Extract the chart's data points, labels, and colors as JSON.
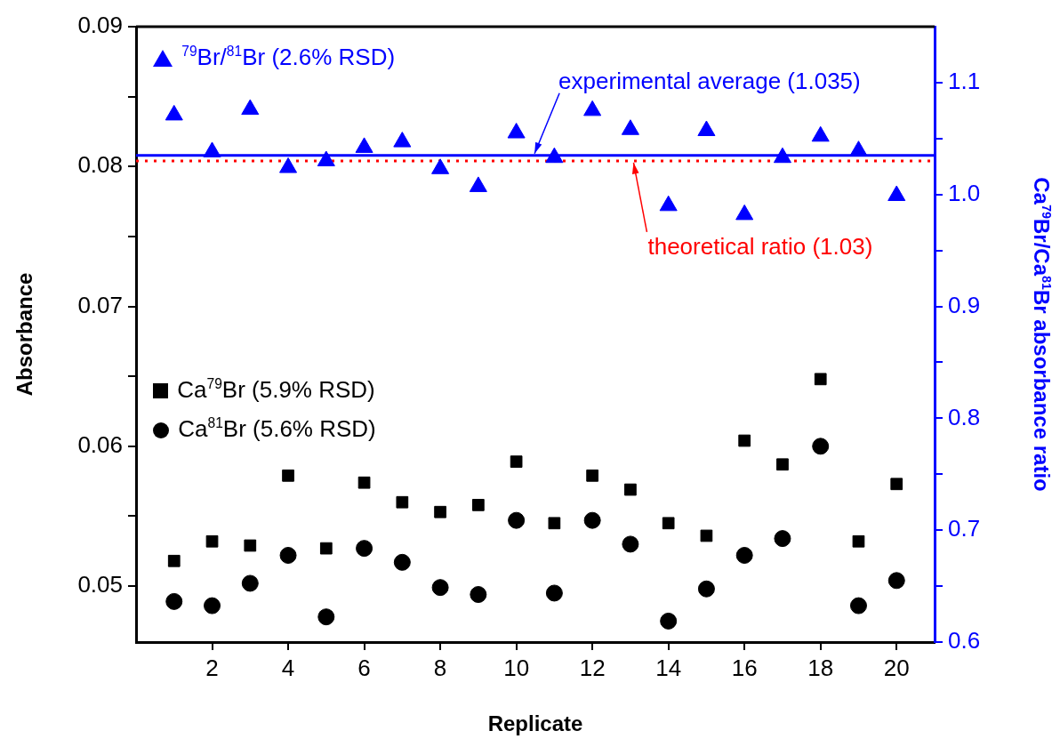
{
  "chart_data": {
    "type": "scatter",
    "xlabel": "Replicate",
    "ylabel": "Absorbance",
    "y2label": "Ca$^{79}$Br/Ca$^{81}$Br absorbance ratio",
    "x": [
      1,
      2,
      3,
      4,
      5,
      6,
      7,
      8,
      9,
      10,
      11,
      12,
      13,
      14,
      15,
      16,
      17,
      18,
      19,
      20
    ],
    "series": [
      {
        "name": "$^{79}$Br/$^{81}$Br (2.6% RSD)",
        "color": "#0000ff",
        "marker": "triangle",
        "axis": "y2",
        "values": [
          1.071,
          1.038,
          1.076,
          1.024,
          1.03,
          1.042,
          1.047,
          1.023,
          1.007,
          1.055,
          1.033,
          1.075,
          1.058,
          0.99,
          1.057,
          0.982,
          1.033,
          1.052,
          1.039,
          0.999
        ]
      },
      {
        "name": "Ca$^{79}$Br (5.9% RSD)",
        "color": "#000000",
        "marker": "square",
        "values": [
          0.0518,
          0.0532,
          0.0529,
          0.0579,
          0.0527,
          0.0574,
          0.056,
          0.0553,
          0.0558,
          0.0589,
          0.0545,
          0.0579,
          0.0569,
          0.0545,
          0.0536,
          0.0604,
          0.0587,
          0.0648,
          0.0532,
          0.0573
        ]
      },
      {
        "name": "Ca$^{81}$Br (5.6% RSD)",
        "color": "#000000",
        "marker": "circle",
        "values": [
          0.0489,
          0.0486,
          0.0502,
          0.0522,
          0.0478,
          0.0527,
          0.0517,
          0.0499,
          0.0494,
          0.0547,
          0.0495,
          0.0547,
          0.053,
          0.0475,
          0.0498,
          0.0522,
          0.0534,
          0.06,
          0.0486,
          0.0504
        ]
      }
    ],
    "xlim": [
      0,
      21
    ],
    "xticks": [
      2,
      4,
      6,
      8,
      10,
      12,
      14,
      16,
      18,
      20
    ],
    "ylim": [
      0.046,
      0.09
    ],
    "yticks": [
      0.05,
      {
        "value": 0.055,
        "label": null
      },
      0.06,
      {
        "value": 0.065,
        "label": null
      },
      0.07,
      {
        "value": 0.075,
        "label": null
      },
      0.08,
      {
        "value": 0.085,
        "label": null
      },
      0.09
    ],
    "y2lim": [
      0.6,
      1.15
    ],
    "y2ticks": [
      0.6,
      {
        "value": 0.65,
        "label": null
      },
      0.7,
      {
        "value": 0.75,
        "label": null
      },
      0.8,
      {
        "value": 0.85,
        "label": null
      },
      0.9,
      {
        "value": 0.95,
        "label": null
      },
      {
        "value": 1,
        "label": "1.0"
      },
      {
        "value": 1.05,
        "label": null
      },
      1.1
    ],
    "ref_lines": [
      {
        "axis": "y2",
        "value": 1.035,
        "color": "#0000ff",
        "line_style": "solid",
        "label": "experimental average (1.035)"
      },
      {
        "axis": "y2",
        "value": 1.03,
        "color": "#ff0000",
        "line_style": "dotted",
        "label": "theoretical ratio (1.03)"
      }
    ],
    "grid": false,
    "legend": "top left"
  }
}
